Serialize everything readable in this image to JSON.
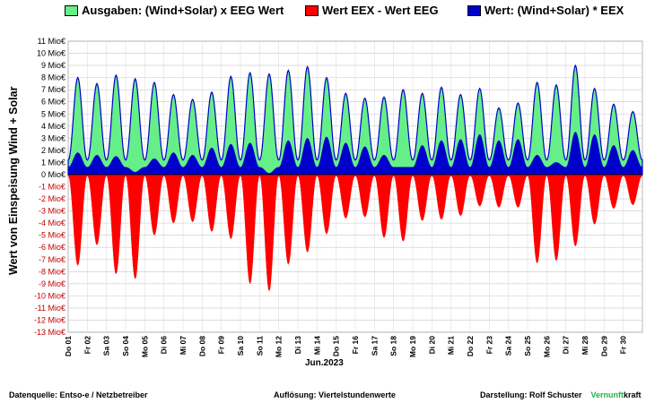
{
  "legend": [
    {
      "label": "Ausgaben: (Wind+Solar) x EEG Wert",
      "color": "#66ee88"
    },
    {
      "label": "Wert EEX - Wert EEG",
      "color": "#ff0000"
    },
    {
      "label": "Wert: (Wind+Solar) * EEX",
      "color": "#0000cc"
    }
  ],
  "chart_data": {
    "type": "area",
    "title": "",
    "ylabel": "Wert von Einspeisung Wind + Solar",
    "xlabel": "Jun.2023",
    "ylim": [
      -13,
      11
    ],
    "y_unit": "Mio€",
    "y_ticks": [
      "11 Mio€",
      "10 Mio€",
      "9 Mio€",
      "8 Mio€",
      "7 Mio€",
      "6 Mio€",
      "5 Mio€",
      "4 Mio€",
      "3 Mio€",
      "2 Mio€",
      "1 Mio€",
      "0 Mio€",
      "-1 Mio€",
      "-2 Mio€",
      "-3 Mio€",
      "-4 Mio€",
      "-5 Mio€",
      "-6 Mio€",
      "-7 Mio€",
      "-8 Mio€",
      "-9 Mio€",
      "-10 Mio€",
      "-11 Mio€",
      "-12 Mio€",
      "-13 Mio€"
    ],
    "categories": [
      "Do 01",
      "Fr 02",
      "Sa 03",
      "So 04",
      "Mo 05",
      "Di 06",
      "Mi 07",
      "Do 08",
      "Fr 09",
      "Sa 10",
      "So 11",
      "Mo 12",
      "Di 13",
      "Mi 14",
      "Do 15",
      "Fr 16",
      "Sa 17",
      "So 18",
      "Mo 19",
      "Di 20",
      "Mi 21",
      "Do 22",
      "Fr 23",
      "Sa 24",
      "So 25",
      "Mo 26",
      "Di 27",
      "Mi 28",
      "Do 29",
      "Fr 30"
    ],
    "grid": true,
    "legend_position": "top",
    "series": [
      {
        "name": "Ausgaben: (Wind+Solar) x EEG Wert",
        "color": "#66ee88",
        "values": [
          8.0,
          7.5,
          8.2,
          7.9,
          7.6,
          6.6,
          6.2,
          6.8,
          8.1,
          8.4,
          8.3,
          8.6,
          8.9,
          8.0,
          6.7,
          6.3,
          6.4,
          7.0,
          6.7,
          7.2,
          6.6,
          7.1,
          5.5,
          5.9,
          7.6,
          7.4,
          9.0,
          7.1,
          5.8,
          5.2
        ]
      },
      {
        "name": "Wert: (Wind+Solar) * EEX",
        "color": "#0000cc",
        "values": [
          1.8,
          1.6,
          1.5,
          0.2,
          1.3,
          1.8,
          1.6,
          2.2,
          2.5,
          2.6,
          0.1,
          2.8,
          3.0,
          3.1,
          2.6,
          2.3,
          1.6,
          0.6,
          2.4,
          2.8,
          2.9,
          3.3,
          2.8,
          2.9,
          1.6,
          1.0,
          3.5,
          3.3,
          2.4,
          2.0
        ]
      },
      {
        "name": "Wert EEX - Wert EEG",
        "color": "#ff0000",
        "values": [
          -7.5,
          -5.8,
          -8.2,
          -8.6,
          -5.0,
          -4.0,
          -3.9,
          -4.7,
          -5.3,
          -9.0,
          -9.6,
          -7.4,
          -6.4,
          -4.9,
          -3.6,
          -3.5,
          -5.2,
          -5.5,
          -3.8,
          -3.7,
          -3.4,
          -2.6,
          -2.7,
          -2.7,
          -7.3,
          -7.1,
          -5.9,
          -4.1,
          -2.8,
          -2.5
        ]
      }
    ]
  },
  "footer": {
    "source": "Datenquelle:  Entso-e  / Netzbetreiber",
    "resolution": "Auflösung: Viertelstundenwerte",
    "author": "Darstellung:  Rolf Schuster",
    "brand_green": "Vernunft",
    "brand_black": "kraft"
  }
}
